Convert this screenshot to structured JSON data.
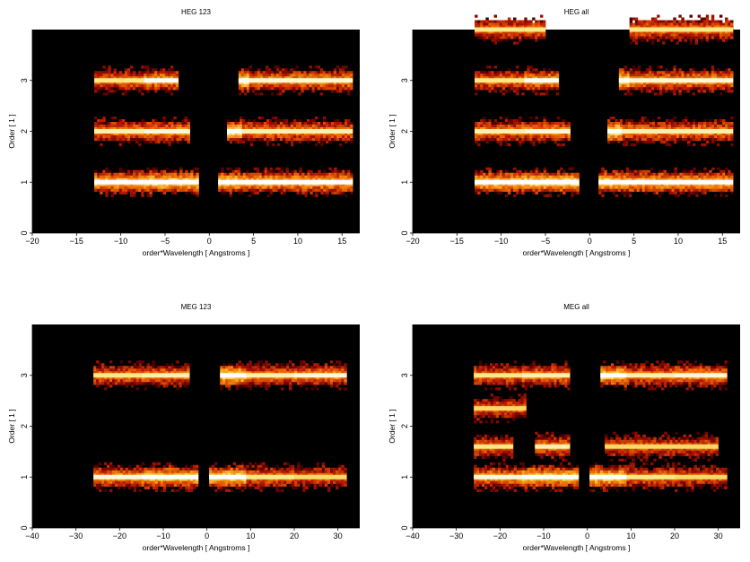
{
  "colors": {
    "background": "#000000",
    "colormap": [
      "#000000",
      "#5a0000",
      "#b21800",
      "#e65c00",
      "#f6a31a",
      "#ffe47a",
      "#ffffff"
    ]
  },
  "chart_data": [
    {
      "type": "heatmap",
      "title": "HEG 123",
      "xlabel": "order*Wavelength [ Angstroms ]",
      "ylabel": "Order [ 1 ]",
      "xlim": [
        -20,
        17
      ],
      "ylim": [
        0,
        4
      ],
      "xticks": [
        "-20",
        "-15",
        "-10",
        "-5",
        "0",
        "5",
        "10",
        "15"
      ],
      "yticks": [
        "0",
        "1",
        "2",
        "3"
      ],
      "bands": [
        {
          "order": 3,
          "segments": [
            [
              -13,
              -7.4,
              0.6
            ],
            [
              -7.4,
              -3.5,
              0.75
            ],
            [
              3.3,
              4.5,
              0.95
            ],
            [
              4.5,
              16.2,
              0.7
            ]
          ]
        },
        {
          "order": 2,
          "segments": [
            [
              -13,
              -7.4,
              0.65
            ],
            [
              -7.4,
              -2.2,
              0.7
            ],
            [
              2,
              3.7,
              0.95
            ],
            [
              3.7,
              16.2,
              0.65
            ]
          ]
        },
        {
          "order": 1,
          "segments": [
            [
              -13,
              -7.4,
              0.85
            ],
            [
              -7.4,
              -1.2,
              0.9
            ],
            [
              1,
              3.5,
              0.9
            ],
            [
              3.5,
              16.2,
              0.8
            ]
          ]
        }
      ]
    },
    {
      "type": "heatmap",
      "title": "HEG all",
      "xlabel": "order*Wavelength [ Angstroms ]",
      "ylabel": "Order [ 1 ]",
      "xlim": [
        -20,
        17
      ],
      "ylim": [
        0,
        4
      ],
      "xticks": [
        "-20",
        "-15",
        "-10",
        "-5",
        "0",
        "5",
        "10",
        "15"
      ],
      "yticks": [
        "0",
        "1",
        "2",
        "3"
      ],
      "bands": [
        {
          "order": 4,
          "segments": [
            [
              -13,
              -7.4,
              0.6
            ],
            [
              -7.4,
              -5,
              0.6
            ],
            [
              4.5,
              16.2,
              0.6
            ]
          ]
        },
        {
          "order": 3,
          "segments": [
            [
              -13,
              -7.4,
              0.6
            ],
            [
              -7.4,
              -3.5,
              0.75
            ],
            [
              3.3,
              4.5,
              0.95
            ],
            [
              4.5,
              16.2,
              0.7
            ]
          ]
        },
        {
          "order": 2,
          "segments": [
            [
              -13,
              -7.4,
              0.65
            ],
            [
              -7.4,
              -2.2,
              0.7
            ],
            [
              2,
              3.7,
              0.95
            ],
            [
              3.7,
              16.2,
              0.65
            ]
          ]
        },
        {
          "order": 1,
          "segments": [
            [
              -13,
              -7.4,
              0.85
            ],
            [
              -7.4,
              -1.2,
              0.9
            ],
            [
              1,
              3.5,
              0.9
            ],
            [
              3.5,
              16.2,
              0.8
            ]
          ]
        }
      ]
    },
    {
      "type": "heatmap",
      "title": "MEG 123",
      "xlabel": "order*Wavelength [ Angstroms ]",
      "ylabel": "Order [ 1 ]",
      "xlim": [
        -40,
        35
      ],
      "ylim": [
        0,
        4
      ],
      "xticks": [
        "-40",
        "-30",
        "-20",
        "-10",
        "0",
        "10",
        "20",
        "30"
      ],
      "yticks": [
        "0",
        "1",
        "2",
        "3"
      ],
      "bands": [
        {
          "order": 3,
          "segments": [
            [
              -26,
              -15,
              0.6
            ],
            [
              -15,
              -4,
              0.65
            ],
            [
              3,
              9,
              0.95
            ],
            [
              9,
              20,
              0.65
            ],
            [
              20,
              32,
              0.7
            ]
          ]
        },
        {
          "order": 1,
          "segments": [
            [
              -26,
              -15,
              0.7
            ],
            [
              -15,
              -2,
              0.85
            ],
            [
              0.5,
              9,
              0.9
            ],
            [
              9,
              20,
              0.6
            ],
            [
              20,
              32,
              0.55
            ]
          ]
        }
      ]
    },
    {
      "type": "heatmap",
      "title": "MEG all",
      "xlabel": "order*Wavelength [ Angstroms ]",
      "ylabel": "Order [ 1 ]",
      "xlim": [
        -40,
        35
      ],
      "ylim": [
        0,
        4
      ],
      "xticks": [
        "-40",
        "-30",
        "-20",
        "-10",
        "0",
        "10",
        "20",
        "30"
      ],
      "yticks": [
        "0",
        "1",
        "2",
        "3"
      ],
      "bands": [
        {
          "order": 3,
          "segments": [
            [
              -26,
              -15,
              0.6
            ],
            [
              -15,
              -4,
              0.65
            ],
            [
              3,
              9,
              0.9
            ],
            [
              9,
              20,
              0.65
            ],
            [
              20,
              32,
              0.7
            ]
          ]
        },
        {
          "order": 2.35,
          "segments": [
            [
              -26,
              -14,
              0.55
            ]
          ]
        },
        {
          "order": 1.6,
          "segments": [
            [
              -26,
              -17,
              0.6
            ],
            [
              -12,
              -4,
              0.65
            ],
            [
              4,
              30,
              0.55
            ]
          ]
        },
        {
          "order": 1,
          "segments": [
            [
              -26,
              -15,
              0.7
            ],
            [
              -15,
              -2,
              0.85
            ],
            [
              0.5,
              9,
              0.9
            ],
            [
              9,
              20,
              0.6
            ],
            [
              20,
              32,
              0.55
            ]
          ]
        }
      ]
    }
  ]
}
